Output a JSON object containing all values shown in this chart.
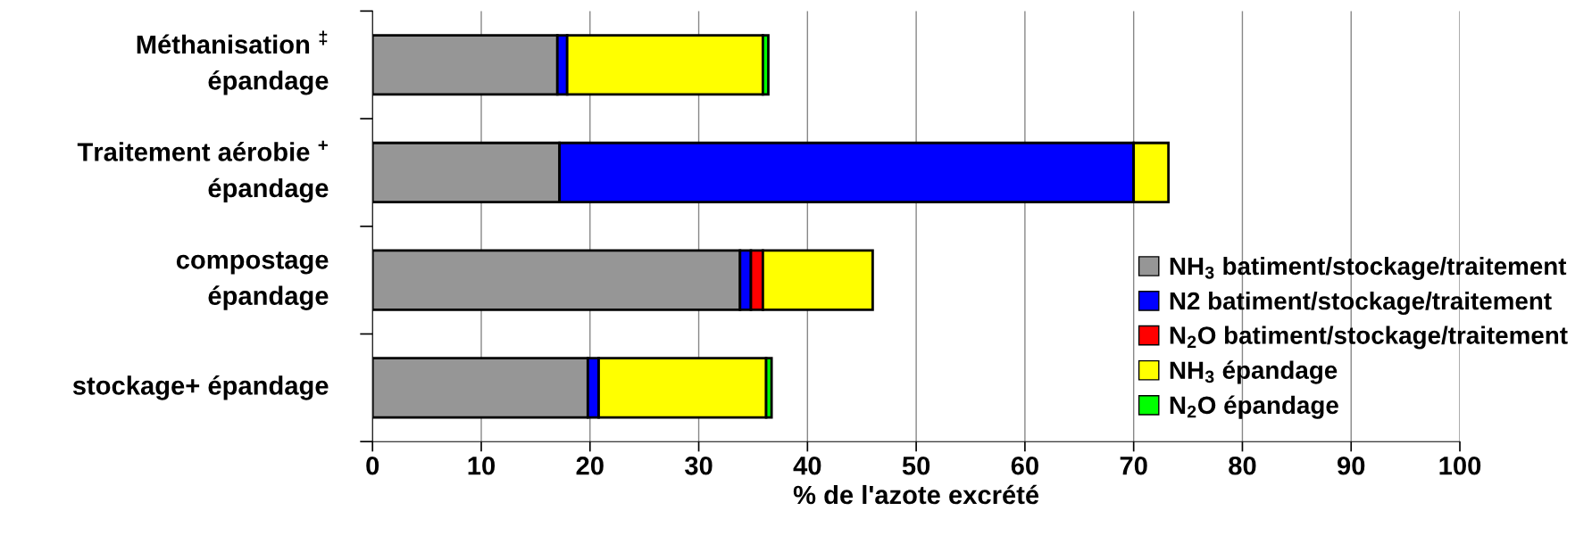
{
  "chart_data": {
    "type": "bar",
    "orientation": "horizontal",
    "stacked": true,
    "categories": [
      "Méthanisation $^{‡}$\népandage",
      "Traitement aérobie $^{+}$\népandage",
      "compostage\népandage",
      "stockage+ épandage"
    ],
    "series": [
      {
        "name": "NH$_{3}$ batiment/stockage/traitement",
        "color": "#969696",
        "values": [
          17.0,
          17.2,
          33.8,
          19.8
        ]
      },
      {
        "name": "N2 batiment/stockage/traitement",
        "color": "#0000ff",
        "values": [
          0.9,
          52.8,
          1.0,
          1.0
        ]
      },
      {
        "name": "N$_{2}$O batiment/stockage/traitement",
        "color": "#ff0000",
        "values": [
          null,
          null,
          1.1,
          null
        ]
      },
      {
        "name": "NH$_{3}$ épandage",
        "color": "#ffff00",
        "values": [
          18.0,
          3.2,
          10.1,
          15.4
        ]
      },
      {
        "name": "N$_{2}$O épandage",
        "color": "#00ff00",
        "values": [
          0.5,
          null,
          null,
          0.5
        ]
      }
    ],
    "xlabel": "% de l'azote excrété",
    "xlim": [
      0,
      100
    ],
    "xticks": [
      0,
      10,
      20,
      30,
      40,
      50,
      60,
      70,
      80,
      90,
      100
    ],
    "grid": "x",
    "legend": "bottom right"
  }
}
